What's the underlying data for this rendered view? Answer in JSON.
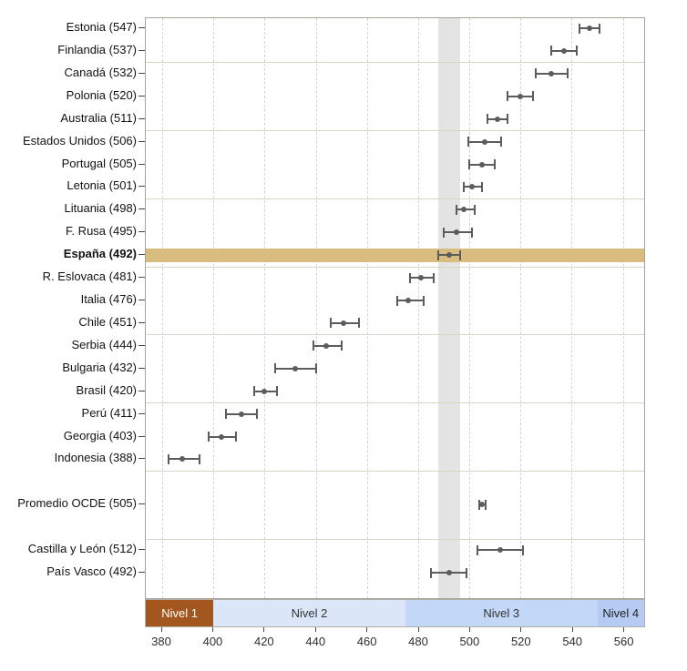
{
  "chart_data": {
    "type": "scatter",
    "subtype": "dot-with-confidence-intervals",
    "orientation": "horizontal",
    "xlim": [
      373.6,
      568.3
    ],
    "x_ticks": [
      380,
      400,
      420,
      440,
      460,
      480,
      500,
      520,
      540,
      560
    ],
    "grid": "vertical-dashed",
    "rows": [
      {
        "label": "Estonia (547)",
        "value": 547,
        "ci_low": 543,
        "ci_high": 551,
        "slot": 0,
        "bold": false,
        "highlight": false
      },
      {
        "label": "Finlandia (537)",
        "value": 537,
        "ci_low": 532,
        "ci_high": 542,
        "slot": 1,
        "bold": false,
        "highlight": false
      },
      {
        "label": "Canadá (532)",
        "value": 532,
        "ci_low": 526,
        "ci_high": 538.5,
        "slot": 2,
        "bold": false,
        "highlight": false
      },
      {
        "label": "Polonia (520)",
        "value": 520,
        "ci_low": 515,
        "ci_high": 525,
        "slot": 3,
        "bold": false,
        "highlight": false
      },
      {
        "label": "Australia (511)",
        "value": 511,
        "ci_low": 507,
        "ci_high": 515,
        "slot": 4,
        "bold": false,
        "highlight": false
      },
      {
        "label": "Estados Unidos (506)",
        "value": 506,
        "ci_low": 499.5,
        "ci_high": 512.5,
        "slot": 5,
        "bold": false,
        "highlight": false
      },
      {
        "label": "Portugal (505)",
        "value": 505,
        "ci_low": 500,
        "ci_high": 510,
        "slot": 6,
        "bold": false,
        "highlight": false
      },
      {
        "label": "Letonia (501)",
        "value": 501,
        "ci_low": 498,
        "ci_high": 505,
        "slot": 7,
        "bold": false,
        "highlight": false
      },
      {
        "label": "Lituania (498)",
        "value": 498,
        "ci_low": 495,
        "ci_high": 502,
        "slot": 8,
        "bold": false,
        "highlight": false
      },
      {
        "label": "F. Rusa (495)",
        "value": 495,
        "ci_low": 490,
        "ci_high": 501,
        "slot": 9,
        "bold": false,
        "highlight": false
      },
      {
        "label": "España (492)",
        "value": 492,
        "ci_low": 488,
        "ci_high": 496.5,
        "slot": 10,
        "bold": true,
        "highlight": true
      },
      {
        "label": "R. Eslovaca (481)",
        "value": 481,
        "ci_low": 477,
        "ci_high": 486,
        "slot": 11,
        "bold": false,
        "highlight": false
      },
      {
        "label": "Italia (476)",
        "value": 476,
        "ci_low": 472,
        "ci_high": 482,
        "slot": 12,
        "bold": false,
        "highlight": false
      },
      {
        "label": "Chile (451)",
        "value": 451,
        "ci_low": 446,
        "ci_high": 457,
        "slot": 13,
        "bold": false,
        "highlight": false
      },
      {
        "label": "Serbia (444)",
        "value": 444,
        "ci_low": 439,
        "ci_high": 450,
        "slot": 14,
        "bold": false,
        "highlight": false
      },
      {
        "label": "Bulgaria (432)",
        "value": 432,
        "ci_low": 424,
        "ci_high": 440,
        "slot": 15,
        "bold": false,
        "highlight": false
      },
      {
        "label": "Brasil (420)",
        "value": 420,
        "ci_low": 416,
        "ci_high": 425,
        "slot": 16,
        "bold": false,
        "highlight": false
      },
      {
        "label": "Perú (411)",
        "value": 411,
        "ci_low": 405,
        "ci_high": 417,
        "slot": 17,
        "bold": false,
        "highlight": false
      },
      {
        "label": "Georgia (403)",
        "value": 403,
        "ci_low": 398,
        "ci_high": 409,
        "slot": 18,
        "bold": false,
        "highlight": false
      },
      {
        "label": "Indonesia (388)",
        "value": 388,
        "ci_low": 382.5,
        "ci_high": 394.5,
        "slot": 19,
        "bold": false,
        "highlight": false
      },
      {
        "label": "Promedio OCDE (505)",
        "value": 505,
        "ci_low": 503.8,
        "ci_high": 506.2,
        "slot": 21,
        "bold": false,
        "highlight": false
      },
      {
        "label": "Castilla y León (512)",
        "value": 512,
        "ci_low": 503,
        "ci_high": 521,
        "slot": 23,
        "bold": false,
        "highlight": false
      },
      {
        "label": "País Vasco (492)",
        "value": 492,
        "ci_low": 485,
        "ci_high": 499,
        "slot": 24,
        "bold": false,
        "highlight": false
      }
    ],
    "group_separators_after_slots": [
      1,
      4,
      7,
      10,
      13,
      16,
      19,
      22
    ],
    "reference_band": {
      "x_from": 488,
      "x_to": 496.5,
      "color": "#e4e4e4"
    },
    "highlight_color": "#d9bd80",
    "marker_color": "#5c5c5c",
    "level_bands": [
      {
        "label": "Nivel 1",
        "x_from": 373.6,
        "x_to": 400,
        "bg": "#a3561d",
        "fg": "#ffffff"
      },
      {
        "label": "Nivel 2",
        "x_from": 400,
        "x_to": 475,
        "bg": "#dbe7f9",
        "fg": "#333333"
      },
      {
        "label": "Nivel 3",
        "x_from": 475,
        "x_to": 550,
        "bg": "#c3d7f6",
        "fg": "#333333"
      },
      {
        "label": "Nivel 4",
        "x_from": 550,
        "x_to": 568.3,
        "bg": "#b5cbf4",
        "fg": "#222222"
      }
    ]
  }
}
